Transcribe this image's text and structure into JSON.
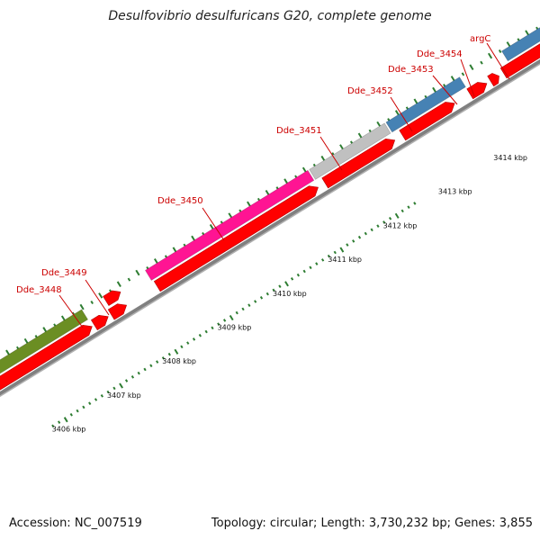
{
  "title": "Desulfovibrio desulfuricans G20, complete genome",
  "footer": {
    "accession": "Accession: NC_007519",
    "stats": "Topology: circular; Length: 3,730,232 bp; Genes: 3,855"
  },
  "kbp_labels": [
    "3406 kbp",
    "3407 kbp",
    "3408 kbp",
    "3409 kbp",
    "3410 kbp",
    "3411 kbp",
    "3412 kbp",
    "3413 kbp",
    "3414 kbp"
  ],
  "genes": [
    {
      "label": "Dde_3448",
      "color": "#6b8e23"
    },
    {
      "label": "Dde_3449",
      "color": "#ff0000"
    },
    {
      "label": "Dde_3450",
      "color": "#ff1493"
    },
    {
      "label": "Dde_3451",
      "color": "#c0c0c0"
    },
    {
      "label": "Dde_3452",
      "color": "#4682b4"
    },
    {
      "label": "Dde_3453",
      "color": "#ff0000"
    },
    {
      "label": "Dde_3454",
      "color": "#ff0000"
    },
    {
      "label": "argC",
      "color": "#4682b4"
    }
  ],
  "colors": {
    "cds": "#ff0000",
    "backbone": "#808080",
    "tick": "#2e7d32",
    "label": "#cc0000"
  }
}
